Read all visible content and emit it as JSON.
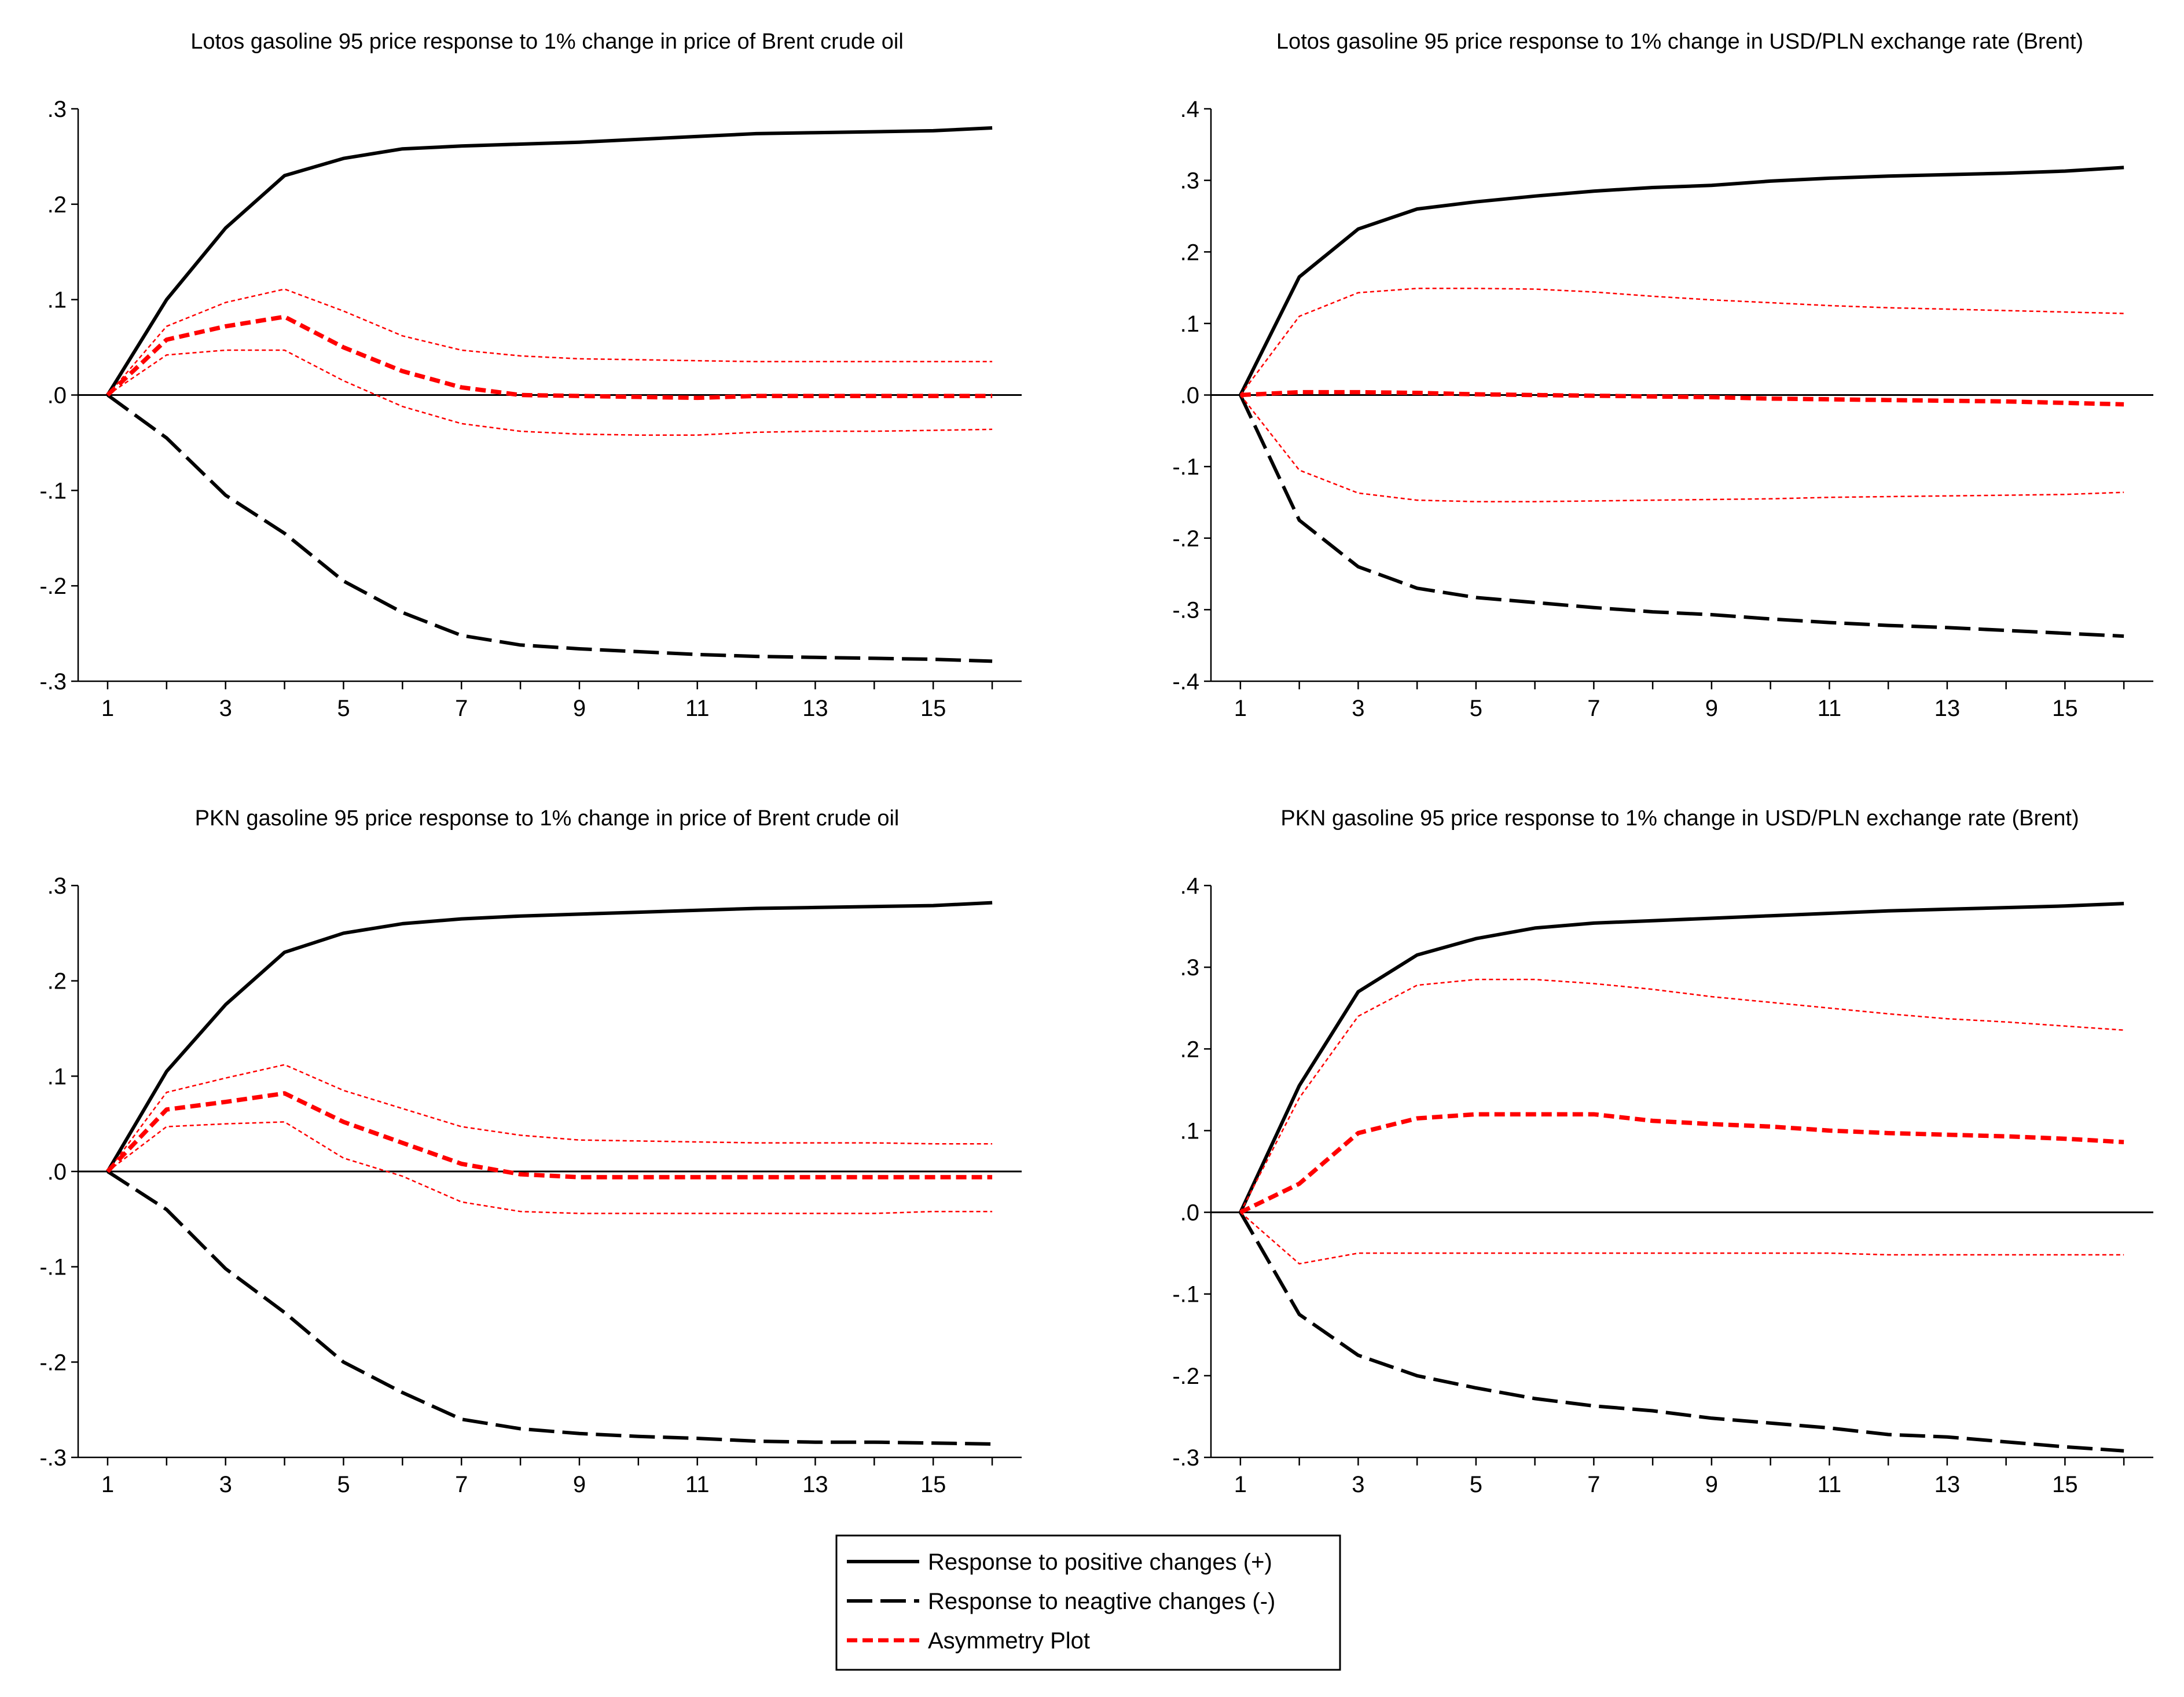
{
  "colors": {
    "positive": "#000000",
    "negative": "#000000",
    "asymmetry": "#ff0000",
    "band": "#ff0000",
    "zero_line": "#000000",
    "axis": "#000000",
    "background": "#ffffff"
  },
  "legend": {
    "positive_label": "Response to positive changes (+)",
    "negative_label": "Response to neagtive changes (-)",
    "asymmetry_label": "Asymmetry Plot"
  },
  "chart_data": [
    {
      "type": "line",
      "title": "Lotos gasoline 95 price response to 1% change in price of Brent crude oil",
      "x": [
        1,
        2,
        3,
        4,
        5,
        6,
        7,
        8,
        9,
        10,
        11,
        12,
        13,
        14,
        15,
        16
      ],
      "xticks": [
        "1",
        "3",
        "5",
        "7",
        "9",
        "11",
        "13",
        "15"
      ],
      "yticks": [
        ".3",
        ".2",
        ".1",
        ".0",
        "-.1",
        "-.2",
        "-.3"
      ],
      "ylim": [
        -0.3,
        0.3
      ],
      "grid": false,
      "series": [
        {
          "role": "positive",
          "values": [
            0,
            0.1,
            0.175,
            0.23,
            0.248,
            0.258,
            0.261,
            0.263,
            0.265,
            0.268,
            0.271,
            0.274,
            0.275,
            0.276,
            0.277,
            0.28
          ]
        },
        {
          "role": "negative",
          "values": [
            0,
            -0.045,
            -0.105,
            -0.145,
            -0.195,
            -0.228,
            -0.252,
            -0.262,
            -0.266,
            -0.269,
            -0.272,
            -0.274,
            -0.275,
            -0.276,
            -0.277,
            -0.279
          ]
        },
        {
          "role": "asymmetry",
          "values": [
            0,
            0.058,
            0.072,
            0.082,
            0.05,
            0.025,
            0.008,
            0.0,
            -0.001,
            -0.002,
            -0.003,
            -0.001,
            -0.001,
            -0.001,
            -0.001,
            -0.001
          ]
        },
        {
          "role": "upper_band",
          "values": [
            0,
            0.072,
            0.097,
            0.111,
            0.088,
            0.062,
            0.047,
            0.041,
            0.038,
            0.037,
            0.036,
            0.035,
            0.035,
            0.035,
            0.035,
            0.035
          ]
        },
        {
          "role": "lower_band",
          "values": [
            0,
            0.042,
            0.047,
            0.047,
            0.015,
            -0.012,
            -0.03,
            -0.038,
            -0.041,
            -0.042,
            -0.042,
            -0.039,
            -0.038,
            -0.038,
            -0.037,
            -0.036
          ]
        }
      ]
    },
    {
      "type": "line",
      "title": "Lotos gasoline 95 price response to 1% change in USD/PLN exchange rate (Brent)",
      "x": [
        1,
        2,
        3,
        4,
        5,
        6,
        7,
        8,
        9,
        10,
        11,
        12,
        13,
        14,
        15,
        16
      ],
      "xticks": [
        "1",
        "3",
        "5",
        "7",
        "9",
        "11",
        "13",
        "15"
      ],
      "yticks": [
        ".4",
        ".3",
        ".2",
        ".1",
        ".0",
        "-.1",
        "-.2",
        "-.3",
        "-.4"
      ],
      "ylim": [
        -0.4,
        0.4
      ],
      "grid": false,
      "series": [
        {
          "role": "positive",
          "values": [
            0,
            0.165,
            0.232,
            0.26,
            0.27,
            0.278,
            0.285,
            0.29,
            0.293,
            0.299,
            0.303,
            0.306,
            0.308,
            0.31,
            0.313,
            0.318
          ]
        },
        {
          "role": "negative",
          "values": [
            0,
            -0.175,
            -0.24,
            -0.27,
            -0.283,
            -0.29,
            -0.297,
            -0.303,
            -0.307,
            -0.313,
            -0.318,
            -0.322,
            -0.325,
            -0.329,
            -0.333,
            -0.337
          ]
        },
        {
          "role": "asymmetry",
          "values": [
            0,
            0.004,
            0.004,
            0.003,
            0.001,
            0.0,
            -0.001,
            -0.002,
            -0.003,
            -0.005,
            -0.006,
            -0.007,
            -0.008,
            -0.009,
            -0.011,
            -0.013
          ]
        },
        {
          "role": "upper_band",
          "values": [
            0,
            0.11,
            0.143,
            0.149,
            0.149,
            0.148,
            0.144,
            0.138,
            0.133,
            0.129,
            0.125,
            0.122,
            0.12,
            0.118,
            0.116,
            0.114
          ]
        },
        {
          "role": "lower_band",
          "values": [
            0,
            -0.105,
            -0.137,
            -0.147,
            -0.149,
            -0.149,
            -0.148,
            -0.147,
            -0.146,
            -0.145,
            -0.143,
            -0.142,
            -0.141,
            -0.14,
            -0.139,
            -0.136
          ]
        }
      ]
    },
    {
      "type": "line",
      "title": "PKN gasoline 95 price response to 1% change in price of Brent crude oil",
      "x": [
        1,
        2,
        3,
        4,
        5,
        6,
        7,
        8,
        9,
        10,
        11,
        12,
        13,
        14,
        15,
        16
      ],
      "xticks": [
        "1",
        "3",
        "5",
        "7",
        "9",
        "11",
        "13",
        "15"
      ],
      "yticks": [
        ".3",
        ".2",
        ".1",
        ".0",
        "-.1",
        "-.2",
        "-.3"
      ],
      "ylim": [
        -0.3,
        0.3
      ],
      "grid": false,
      "series": [
        {
          "role": "positive",
          "values": [
            0,
            0.105,
            0.175,
            0.23,
            0.25,
            0.26,
            0.265,
            0.268,
            0.27,
            0.272,
            0.274,
            0.276,
            0.277,
            0.278,
            0.279,
            0.282
          ]
        },
        {
          "role": "negative",
          "values": [
            0,
            -0.04,
            -0.102,
            -0.148,
            -0.2,
            -0.232,
            -0.26,
            -0.27,
            -0.275,
            -0.278,
            -0.28,
            -0.283,
            -0.284,
            -0.284,
            -0.285,
            -0.286
          ]
        },
        {
          "role": "asymmetry",
          "values": [
            0,
            0.065,
            0.073,
            0.082,
            0.052,
            0.03,
            0.008,
            -0.003,
            -0.006,
            -0.006,
            -0.006,
            -0.006,
            -0.006,
            -0.006,
            -0.006,
            -0.006
          ]
        },
        {
          "role": "upper_band",
          "values": [
            0,
            0.083,
            0.098,
            0.112,
            0.085,
            0.066,
            0.047,
            0.038,
            0.033,
            0.032,
            0.031,
            0.03,
            0.03,
            0.03,
            0.029,
            0.029
          ]
        },
        {
          "role": "lower_band",
          "values": [
            0,
            0.047,
            0.05,
            0.052,
            0.014,
            -0.005,
            -0.032,
            -0.042,
            -0.044,
            -0.044,
            -0.044,
            -0.044,
            -0.044,
            -0.044,
            -0.042,
            -0.042
          ]
        }
      ]
    },
    {
      "type": "line",
      "title": "PKN gasoline 95 price response to 1% change in USD/PLN exchange rate (Brent)",
      "x": [
        1,
        2,
        3,
        4,
        5,
        6,
        7,
        8,
        9,
        10,
        11,
        12,
        13,
        14,
        15,
        16
      ],
      "xticks": [
        "1",
        "3",
        "5",
        "7",
        "9",
        "11",
        "13",
        "15"
      ],
      "yticks": [
        ".4",
        ".3",
        ".2",
        ".1",
        ".0",
        "-.1",
        "-.2",
        "-.3"
      ],
      "ylim": [
        -0.3,
        0.4
      ],
      "grid": false,
      "series": [
        {
          "role": "positive",
          "values": [
            0,
            0.155,
            0.27,
            0.315,
            0.335,
            0.348,
            0.354,
            0.357,
            0.36,
            0.363,
            0.366,
            0.369,
            0.371,
            0.373,
            0.375,
            0.378
          ]
        },
        {
          "role": "negative",
          "values": [
            0,
            -0.125,
            -0.175,
            -0.2,
            -0.215,
            -0.228,
            -0.237,
            -0.243,
            -0.252,
            -0.258,
            -0.264,
            -0.272,
            -0.275,
            -0.281,
            -0.287,
            -0.292
          ]
        },
        {
          "role": "asymmetry",
          "values": [
            0,
            0.035,
            0.097,
            0.115,
            0.12,
            0.12,
            0.12,
            0.112,
            0.108,
            0.105,
            0.1,
            0.097,
            0.095,
            0.093,
            0.09,
            0.086
          ]
        },
        {
          "role": "upper_band",
          "values": [
            0,
            0.14,
            0.24,
            0.278,
            0.285,
            0.285,
            0.28,
            0.273,
            0.264,
            0.257,
            0.25,
            0.243,
            0.237,
            0.233,
            0.228,
            0.223
          ]
        },
        {
          "role": "lower_band",
          "values": [
            0,
            -0.063,
            -0.05,
            -0.05,
            -0.05,
            -0.05,
            -0.05,
            -0.05,
            -0.05,
            -0.05,
            -0.05,
            -0.052,
            -0.052,
            -0.052,
            -0.052,
            -0.052
          ]
        }
      ]
    }
  ]
}
